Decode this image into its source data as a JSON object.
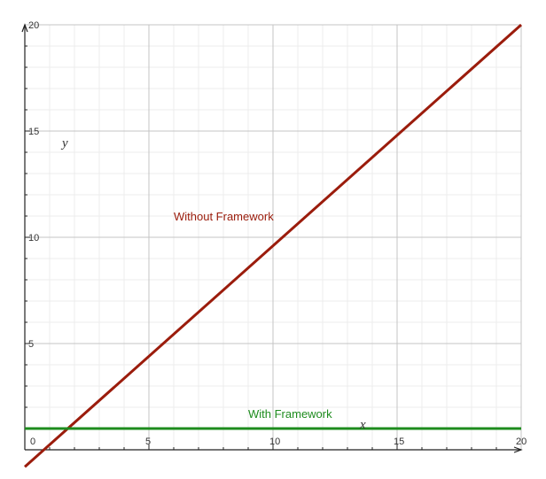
{
  "chart_data": {
    "type": "line",
    "title": "",
    "xlabel": "x",
    "ylabel": "y",
    "xlim": [
      0,
      20
    ],
    "ylim": [
      0,
      20
    ],
    "x_ticks": [
      0,
      5,
      10,
      15,
      20
    ],
    "y_ticks": [
      5,
      10,
      15,
      20
    ],
    "x_tick_labels": [
      "0",
      "5",
      "10",
      "15",
      "20"
    ],
    "y_tick_labels": [
      "5",
      "10",
      "15",
      "20"
    ],
    "grid": true,
    "series": [
      {
        "name": "Without Framework",
        "x": [
          0,
          20
        ],
        "y": [
          -0.8,
          20
        ],
        "color": "#9b1c0c"
      },
      {
        "name": "With Framework",
        "x": [
          0,
          20
        ],
        "y": [
          1,
          1
        ],
        "color": "#1e8c1e"
      }
    ],
    "annotations": [
      {
        "text": "Without Framework",
        "x": 6.0,
        "y": 10.8,
        "color": "#9b1c0c"
      },
      {
        "text": "With Framework",
        "x": 9.0,
        "y": 1.5,
        "color": "#1e8c1e"
      }
    ]
  }
}
